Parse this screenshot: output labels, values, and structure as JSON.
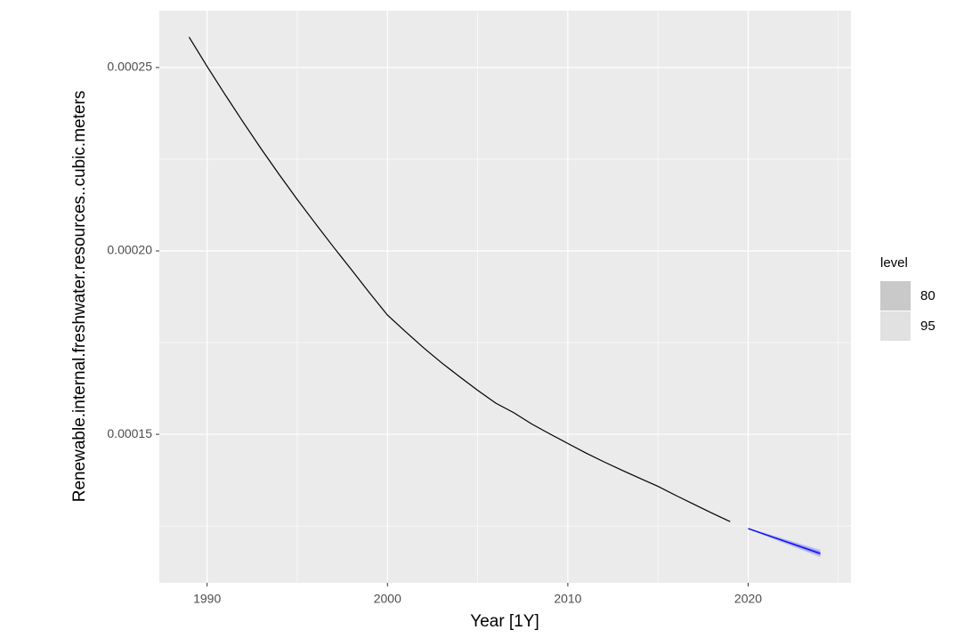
{
  "chart_data": {
    "type": "line",
    "x_label": "Year [1Y]",
    "y_label": "Renewable.internal.freshwater.resources..cubic.meters",
    "xlim": [
      1987.35,
      2025.7
    ],
    "ylim": [
      0.0001095,
      0.0002655
    ],
    "xticks": [
      1990,
      2000,
      2010,
      2020
    ],
    "yticks": [
      0.00015,
      {
        "value": 0.0002,
        "label": "0.00020"
      },
      0.00025
    ],
    "grid": true,
    "color": "#000000",
    "x": [
      1989,
      1990,
      1991,
      1992,
      1993,
      1994,
      1995,
      1996,
      1997,
      1998,
      1999,
      2000,
      2001,
      2002,
      2003,
      2004,
      2005,
      2006,
      2007,
      2008,
      2009,
      2010,
      2011,
      2012,
      2013,
      2014,
      2015,
      2016,
      2017,
      2018,
      2019
    ],
    "values": [
      0.0002583,
      0.0002503,
      0.0002426,
      0.0002351,
      0.0002278,
      0.0002208,
      0.000214,
      0.0002075,
      0.0002011,
      0.0001949,
      0.0001886,
      0.0001825,
      0.000178,
      0.0001736,
      0.0001695,
      0.0001657,
      0.000162,
      0.0001585,
      0.0001559,
      0.0001528,
      0.0001501,
      0.0001475,
      0.0001449,
      0.0001425,
      0.0001402,
      0.000138,
      0.0001358,
      0.0001333,
      0.0001309,
      0.0001285,
      0.0001262
    ],
    "forecast": {
      "color": "#0000ff",
      "x": [
        2020,
        2021,
        2022,
        2023,
        2024
      ],
      "values": [
        0.0001243,
        0.0001226,
        0.0001209,
        0.0001192,
        0.0001175
      ],
      "legend_title": "level",
      "intervals": [
        {
          "level": 80,
          "alpha": 0.3,
          "legend_color": "#c9c9c9",
          "lower": [
            0.0001242,
            0.0001224,
            0.0001206,
            0.0001188,
            0.000117
          ],
          "upper": [
            0.0001244,
            0.0001228,
            0.0001212,
            0.0001196,
            0.000118
          ]
        },
        {
          "level": 95,
          "alpha": 0.18,
          "legend_color": "#e1e1e1",
          "lower": [
            0.0001241,
            0.0001222,
            0.0001203,
            0.0001184,
            0.0001165
          ],
          "upper": [
            0.0001245,
            0.000123,
            0.0001215,
            0.00012,
            0.0001185
          ]
        }
      ]
    }
  }
}
